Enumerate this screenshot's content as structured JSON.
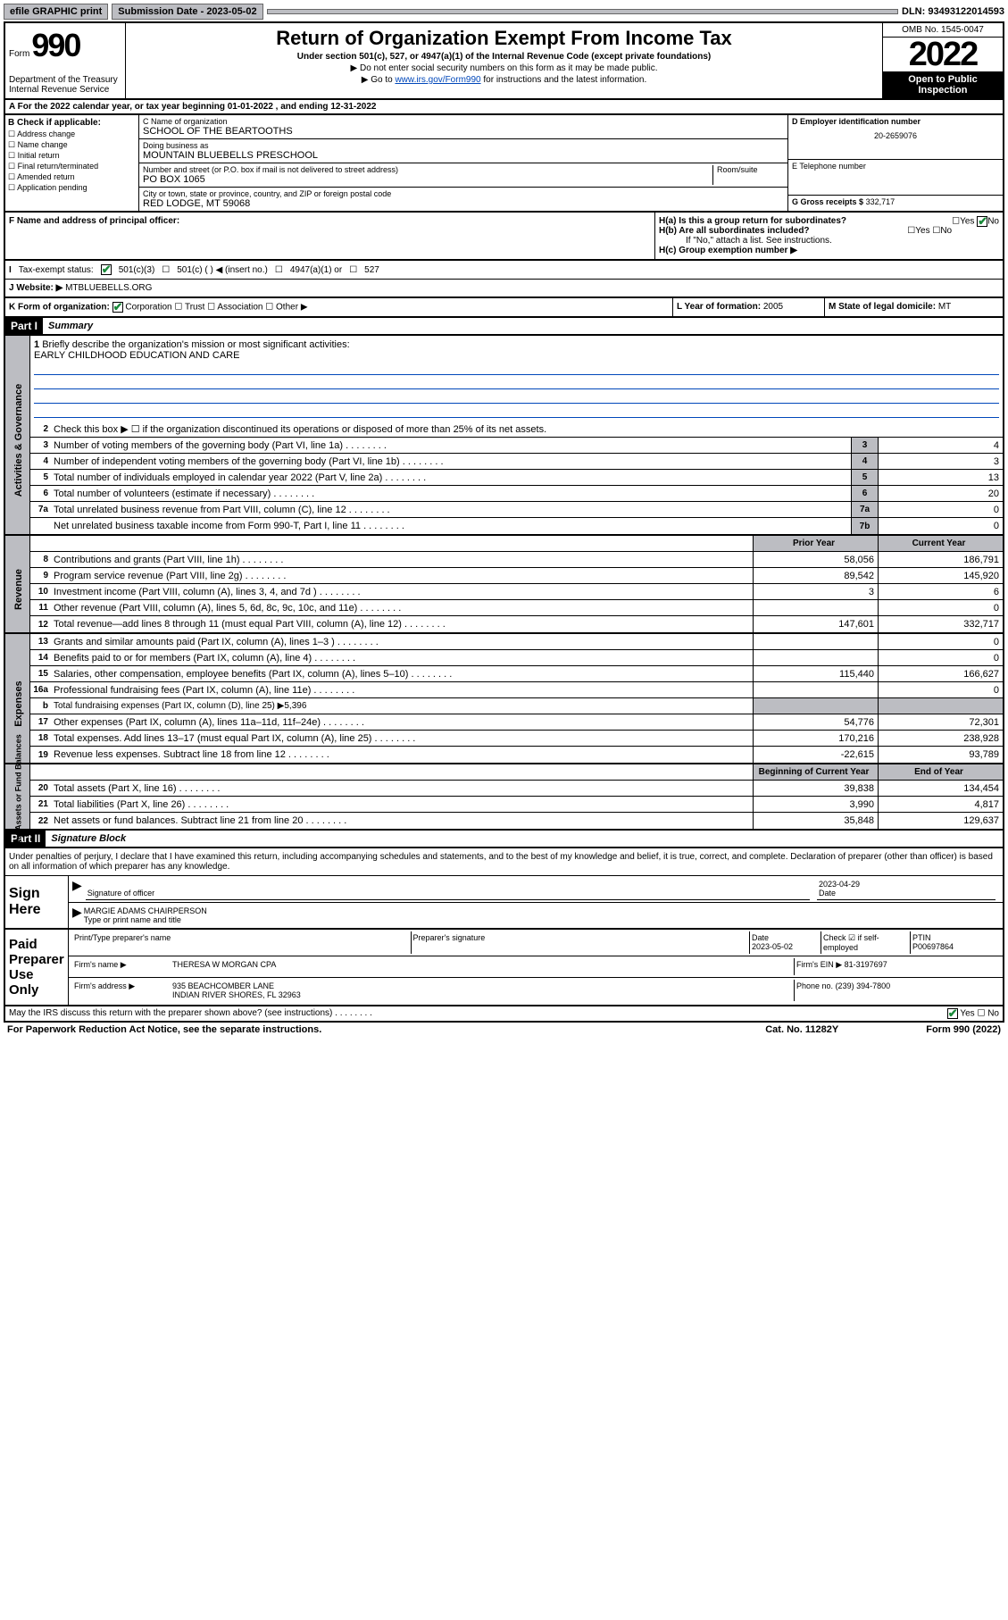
{
  "topbar": {
    "efile": "efile GRAPHIC print",
    "sub_label": "Submission Date - 2023-05-02",
    "dln": "DLN: 93493122014593"
  },
  "header": {
    "form_label": "Form",
    "form_num": "990",
    "dept": "Department of the Treasury",
    "irs": "Internal Revenue Service",
    "title": "Return of Organization Exempt From Income Tax",
    "sub": "Under section 501(c), 527, or 4947(a)(1) of the Internal Revenue Code (except private foundations)",
    "note1": "▶ Do not enter social security numbers on this form as it may be made public.",
    "note2_pre": "▶ Go to ",
    "note2_link": "www.irs.gov/Form990",
    "note2_post": " for instructions and the latest information.",
    "omb": "OMB No. 1545-0047",
    "year": "2022",
    "inspect": "Open to Public Inspection"
  },
  "row_a": "A For the 2022 calendar year, or tax year beginning 01-01-2022    , and ending 12-31-2022",
  "box_b": {
    "label": "B Check if applicable:",
    "opts": [
      "Address change",
      "Name change",
      "Initial return",
      "Final return/terminated",
      "Amended return",
      "Application pending"
    ]
  },
  "box_c": {
    "name_label": "C Name of organization",
    "name": "SCHOOL OF THE BEARTOOTHS",
    "dba_label": "Doing business as",
    "dba": "MOUNTAIN BLUEBELLS PRESCHOOL",
    "addr_label": "Number and street (or P.O. box if mail is not delivered to street address)",
    "addr": "PO BOX 1065",
    "room_label": "Room/suite",
    "city_label": "City or town, state or province, country, and ZIP or foreign postal code",
    "city": "RED LODGE, MT  59068"
  },
  "box_d": {
    "label": "D Employer identification number",
    "val": "20-2659076"
  },
  "box_e": {
    "label": "E Telephone number",
    "val": ""
  },
  "box_g": {
    "label": "G Gross receipts $",
    "val": "332,717"
  },
  "box_f": {
    "label": "F Name and address of principal officer:",
    "val": ""
  },
  "box_h": {
    "a": "H(a)  Is this a group return for subordinates?",
    "b": "H(b)  Are all subordinates included?",
    "b_note": "If \"No,\" attach a list. See instructions.",
    "c": "H(c)  Group exemption number ▶"
  },
  "box_i": {
    "label": "Tax-exempt status:",
    "opts": [
      "501(c)(3)",
      "501(c) (  ) ◀ (insert no.)",
      "4947(a)(1) or",
      "527"
    ]
  },
  "box_j": {
    "label": "Website: ▶",
    "val": "MTBLUEBELLS.ORG"
  },
  "box_k": {
    "label": "K Form of organization:",
    "opts": [
      "Corporation",
      "Trust",
      "Association",
      "Other ▶"
    ]
  },
  "box_l": {
    "label": "L Year of formation:",
    "val": "2005"
  },
  "box_m": {
    "label": "M State of legal domicile:",
    "val": "MT"
  },
  "parts": {
    "p1": "Part I",
    "p1_title": "Summary",
    "p2": "Part II",
    "p2_title": "Signature Block"
  },
  "vtabs": {
    "gov": "Activities & Governance",
    "rev": "Revenue",
    "exp": "Expenses",
    "net": "Net Assets or Fund Balances"
  },
  "q1": {
    "label": "Briefly describe the organization's mission or most significant activities:",
    "val": "EARLY CHILDHOOD EDUCATION AND CARE"
  },
  "q2": "Check this box ▶ ☐  if the organization discontinued its operations or disposed of more than 25% of its net assets.",
  "gov_lines": [
    {
      "n": "3",
      "d": "Number of voting members of the governing body (Part VI, line 1a)",
      "box": "3",
      "v": "4"
    },
    {
      "n": "4",
      "d": "Number of independent voting members of the governing body (Part VI, line 1b)",
      "box": "4",
      "v": "3"
    },
    {
      "n": "5",
      "d": "Total number of individuals employed in calendar year 2022 (Part V, line 2a)",
      "box": "5",
      "v": "13"
    },
    {
      "n": "6",
      "d": "Total number of volunteers (estimate if necessary)",
      "box": "6",
      "v": "20"
    },
    {
      "n": "7a",
      "d": "Total unrelated business revenue from Part VIII, column (C), line 12",
      "box": "7a",
      "v": "0"
    },
    {
      "n": "",
      "d": "Net unrelated business taxable income from Form 990-T, Part I, line 11",
      "box": "7b",
      "v": "0"
    }
  ],
  "col_hdr": {
    "prior": "Prior Year",
    "current": "Current Year"
  },
  "rev_lines": [
    {
      "n": "8",
      "d": "Contributions and grants (Part VIII, line 1h)",
      "p": "58,056",
      "c": "186,791"
    },
    {
      "n": "9",
      "d": "Program service revenue (Part VIII, line 2g)",
      "p": "89,542",
      "c": "145,920"
    },
    {
      "n": "10",
      "d": "Investment income (Part VIII, column (A), lines 3, 4, and 7d )",
      "p": "3",
      "c": "6"
    },
    {
      "n": "11",
      "d": "Other revenue (Part VIII, column (A), lines 5, 6d, 8c, 9c, 10c, and 11e)",
      "p": "",
      "c": "0"
    },
    {
      "n": "12",
      "d": "Total revenue—add lines 8 through 11 (must equal Part VIII, column (A), line 12)",
      "p": "147,601",
      "c": "332,717"
    }
  ],
  "exp_lines": [
    {
      "n": "13",
      "d": "Grants and similar amounts paid (Part IX, column (A), lines 1–3 )",
      "p": "",
      "c": "0"
    },
    {
      "n": "14",
      "d": "Benefits paid to or for members (Part IX, column (A), line 4)",
      "p": "",
      "c": "0"
    },
    {
      "n": "15",
      "d": "Salaries, other compensation, employee benefits (Part IX, column (A), lines 5–10)",
      "p": "115,440",
      "c": "166,627"
    },
    {
      "n": "16a",
      "d": "Professional fundraising fees (Part IX, column (A), line 11e)",
      "p": "",
      "c": "0"
    },
    {
      "n": "b",
      "d": "Total fundraising expenses (Part IX, column (D), line 25) ▶5,396",
      "p": null,
      "c": null
    },
    {
      "n": "17",
      "d": "Other expenses (Part IX, column (A), lines 11a–11d, 11f–24e)",
      "p": "54,776",
      "c": "72,301"
    },
    {
      "n": "18",
      "d": "Total expenses. Add lines 13–17 (must equal Part IX, column (A), line 25)",
      "p": "170,216",
      "c": "238,928"
    },
    {
      "n": "19",
      "d": "Revenue less expenses. Subtract line 18 from line 12",
      "p": "-22,615",
      "c": "93,789"
    }
  ],
  "net_hdr": {
    "b": "Beginning of Current Year",
    "e": "End of Year"
  },
  "net_lines": [
    {
      "n": "20",
      "d": "Total assets (Part X, line 16)",
      "p": "39,838",
      "c": "134,454"
    },
    {
      "n": "21",
      "d": "Total liabilities (Part X, line 26)",
      "p": "3,990",
      "c": "4,817"
    },
    {
      "n": "22",
      "d": "Net assets or fund balances. Subtract line 21 from line 20",
      "p": "35,848",
      "c": "129,637"
    }
  ],
  "sig": {
    "decl": "Under penalties of perjury, I declare that I have examined this return, including accompanying schedules and statements, and to the best of my knowledge and belief, it is true, correct, and complete. Declaration of preparer (other than officer) is based on all information of which preparer has any knowledge.",
    "sign_here": "Sign Here",
    "sig_label": "Signature of officer",
    "date_label": "Date",
    "date": "2023-04-29",
    "name": "MARGIE ADAMS CHAIRPERSON",
    "name_label": "Type or print name and title",
    "paid": "Paid Preparer Use Only",
    "prep_name_label": "Print/Type preparer's name",
    "prep_sig_label": "Preparer's signature",
    "prep_date_label": "Date",
    "prep_date": "2023-05-02",
    "chk_label": "Check ☑ if self-employed",
    "ptin_label": "PTIN",
    "ptin": "P00697864",
    "firm_name_label": "Firm's name    ▶",
    "firm_name": "THERESA W MORGAN CPA",
    "firm_ein_label": "Firm's EIN ▶",
    "firm_ein": "81-3197697",
    "firm_addr_label": "Firm's address ▶",
    "firm_addr1": "935 BEACHCOMBER LANE",
    "firm_addr2": "INDIAN RIVER SHORES, FL  32963",
    "phone_label": "Phone no.",
    "phone": "(239) 394-7800"
  },
  "discuss": "May the IRS discuss this return with the preparer shown above? (see instructions)",
  "footer": {
    "pra": "For Paperwork Reduction Act Notice, see the separate instructions.",
    "cat": "Cat. No. 11282Y",
    "form": "Form 990 (2022)"
  },
  "yes": "Yes",
  "no": "No"
}
